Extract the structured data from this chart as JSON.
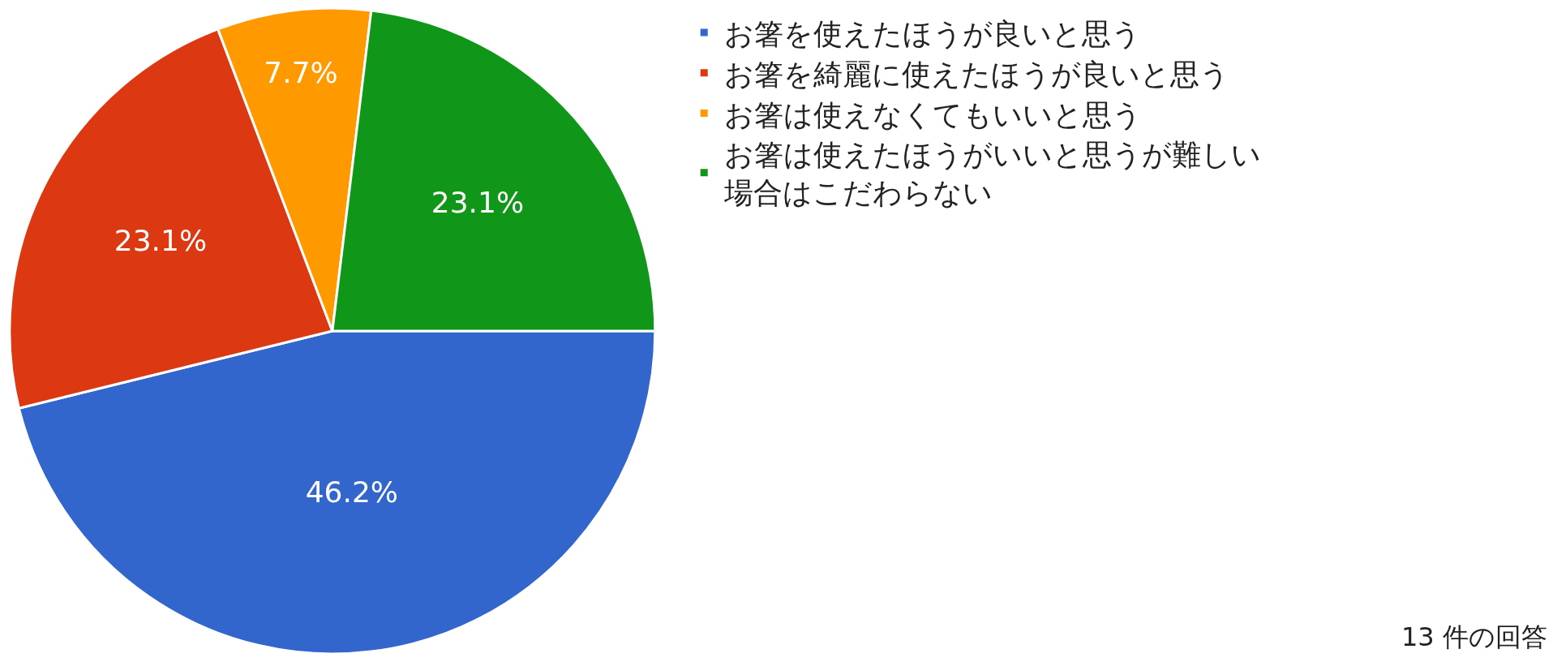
{
  "chart_data": {
    "type": "pie",
    "categories": [
      "お箸を使えたほうが良いと思う",
      "お箸を綺麗に使えたほうが良いと思う",
      "お箸は使えなくてもいいと思う",
      "お箸は使えたほうがいいと思うが難しい場合はこだわらない"
    ],
    "values": [
      46.2,
      23.1,
      7.7,
      23.1
    ],
    "colors": [
      "#3366cc",
      "#dc3912",
      "#ff9900",
      "#109618"
    ],
    "value_labels": [
      "46.2%",
      "23.1%",
      "7.7%",
      "23.1%"
    ],
    "legend": "top right",
    "annotations": [
      "13 件の回答"
    ]
  }
}
